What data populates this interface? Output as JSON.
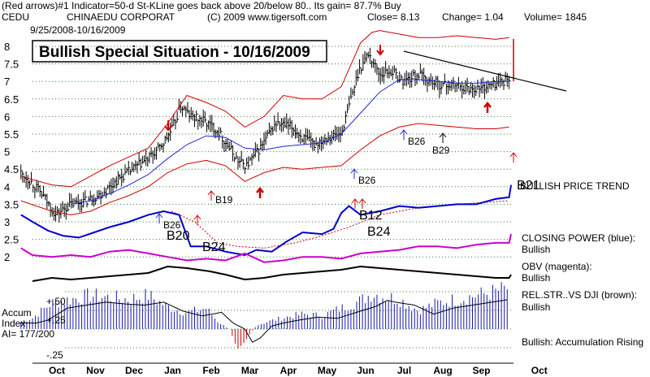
{
  "header": {
    "line1": "(Red arrows)#1 Indicator=50-d St-KLine goes back above 20/below 80..  Its gain= 87.7% Buy",
    "ticker": "CEDU",
    "company": "CHINAEDU CORPORAT",
    "copyright": "(C) 2009 www.tigersoft.com",
    "close_text": "Close=  8.13",
    "change_text": "Change= 1.04",
    "volume_text": "Volume= 1845",
    "date_range": "9/25/2008-10/16/2009"
  },
  "banner": "Bullish Special Situation - 10/16/2009",
  "labels": {
    "accum_index": [
      "Accum",
      "Index",
      "AI= 177/200"
    ],
    "bullish_trend": "BULLISH PRICE TREND",
    "closing_power": [
      "CLOSING POWER (blue):",
      "Bullish"
    ],
    "obv": [
      "OBV (magenta):",
      "Bullish"
    ],
    "relstr": [
      "REL.STR..VS DJI (brown):",
      "Bullish"
    ],
    "accum_rising": "Bullish: Accumulation Rising",
    "b21_overlap": "B21"
  },
  "signals": [
    {
      "text": "B19"
    },
    {
      "text": "B26"
    },
    {
      "text": "B26"
    },
    {
      "text": "B29"
    },
    {
      "text": "B26"
    },
    {
      "text": "B20"
    },
    {
      "text": "B24"
    },
    {
      "text": "B12"
    },
    {
      "text": "B24"
    }
  ],
  "chart_data": {
    "type": "line",
    "price_axis": {
      "ticks": [
        "8",
        "7.5",
        "7",
        "6.5",
        "6",
        "5.5",
        "5",
        "4.5",
        "4",
        "3.5",
        "3",
        "2.5",
        "2"
      ],
      "ylim": [
        1.9,
        8.5
      ]
    },
    "indicator_ticks": [
      "+.50",
      "+.25",
      "-.25"
    ],
    "x_tick_labels": [
      "Oct",
      "Nov",
      "Dec",
      "Jan",
      "Feb",
      "Mar",
      "Apr",
      "May",
      "Jun",
      "Jul",
      "Aug",
      "Sep",
      "Oct"
    ],
    "x_tick_months": [
      0,
      1,
      2,
      3,
      4,
      5,
      6,
      7,
      8,
      9,
      10,
      11,
      12.5
    ],
    "grid": true,
    "series": [
      {
        "key": "price",
        "color": "#000000",
        "x": [
          -0.3,
          0,
          0.3,
          0.6,
          1,
          1.4,
          1.8,
          2.2,
          2.6,
          3,
          3.3,
          3.6,
          3.85,
          4.1,
          4.4,
          4.8,
          5.1,
          5.35,
          5.55,
          5.9,
          6.3,
          6.7,
          7,
          7.3,
          7.6,
          8,
          8.25,
          8.45,
          8.7,
          9,
          9.3,
          9.6,
          10,
          10.3,
          10.6,
          11,
          11.3,
          11.6,
          11.9,
          12.15,
          12.35
        ],
        "values": [
          4.4,
          4.1,
          3.7,
          3.2,
          3.5,
          3.6,
          3.8,
          4.2,
          4.5,
          4.8,
          5.1,
          5.6,
          6.3,
          6.0,
          5.9,
          5.6,
          5.1,
          4.7,
          4.6,
          5.1,
          5.8,
          5.7,
          5.4,
          5.2,
          5.4,
          5.5,
          6.5,
          7.3,
          7.8,
          7.2,
          7.3,
          7.0,
          7.2,
          7.0,
          6.9,
          6.9,
          6.8,
          6.8,
          6.9,
          7.0,
          7.05
        ]
      },
      {
        "key": "mavg",
        "color": "#2222dd",
        "x": [
          1,
          1.5,
          2,
          2.5,
          3,
          3.5,
          4,
          4.5,
          5,
          5.5,
          6,
          6.5,
          7,
          7.5,
          8,
          8.5,
          9,
          9.5,
          10,
          10.5,
          11,
          11.5,
          12,
          12.35
        ],
        "values": [
          3.5,
          3.6,
          3.8,
          4.05,
          4.35,
          4.8,
          5.2,
          5.45,
          5.4,
          5.1,
          5.05,
          5.15,
          5.2,
          5.25,
          5.5,
          6.1,
          6.7,
          7.05,
          7.05,
          7.0,
          6.95,
          6.95,
          7.0,
          7.0
        ]
      },
      {
        "key": "upper_band",
        "color": "#cc0000",
        "x": [
          -0.3,
          0.5,
          1,
          1.5,
          2,
          2.5,
          3,
          3.5,
          4,
          4.5,
          5,
          5.5,
          6,
          6.5,
          7,
          7.5,
          8,
          8.5,
          8.8,
          9,
          9.5,
          10,
          10.5,
          11,
          11.5,
          12,
          12.35
        ],
        "values": [
          4.3,
          4.05,
          4.0,
          4.3,
          4.6,
          4.85,
          5.1,
          5.8,
          6.6,
          6.4,
          6.15,
          5.7,
          6.0,
          6.6,
          6.5,
          6.5,
          6.85,
          8.1,
          8.4,
          8.45,
          8.35,
          8.25,
          8.25,
          8.3,
          8.25,
          8.2,
          8.25
        ]
      },
      {
        "key": "lower_band",
        "color": "#cc0000",
        "x": [
          -0.3,
          0.5,
          1,
          1.5,
          2,
          2.5,
          3,
          3.5,
          4,
          4.5,
          5,
          5.5,
          6,
          6.5,
          7,
          7.5,
          8,
          8.5,
          9,
          9.5,
          10,
          10.5,
          11,
          11.5,
          12,
          12.35
        ],
        "values": [
          3.6,
          3.3,
          3.2,
          3.3,
          3.55,
          3.75,
          4.0,
          4.4,
          4.65,
          4.75,
          4.6,
          4.15,
          4.4,
          4.55,
          4.5,
          4.55,
          4.6,
          5.05,
          5.45,
          5.7,
          5.8,
          5.75,
          5.7,
          5.65,
          5.65,
          5.7
        ]
      },
      {
        "key": "relstr_line",
        "color": "#cc0000",
        "x": [
          3.6,
          4.2,
          4.8,
          5.3,
          6,
          6.8,
          7.5,
          8.2,
          9,
          10,
          11,
          12.35
        ],
        "values": [
          3.3,
          3.0,
          2.4,
          2.3,
          2.25,
          2.4,
          2.6,
          2.85,
          3.2,
          3.4,
          3.5,
          3.6
        ]
      },
      {
        "key": "closing_power",
        "color": "#0000cc",
        "x": [
          -0.3,
          0,
          0.4,
          0.8,
          1.2,
          1.6,
          2,
          2.5,
          3,
          3.4,
          3.8,
          4.1,
          4.5,
          5,
          5.5,
          5.8,
          6.2,
          6.6,
          7,
          7.5,
          7.8,
          8,
          8.2,
          8.5,
          9,
          9.5,
          10,
          10.5,
          11,
          11.5,
          12,
          12.35,
          12.4
        ],
        "values": [
          3.2,
          3.0,
          2.75,
          2.6,
          2.55,
          2.7,
          2.85,
          3.0,
          3.2,
          3.3,
          3.2,
          2.3,
          2.3,
          2.15,
          2.05,
          2.2,
          2.15,
          2.45,
          2.7,
          2.65,
          2.8,
          3.25,
          3.45,
          3.2,
          3.3,
          3.45,
          3.4,
          3.45,
          3.5,
          3.5,
          3.65,
          3.7,
          4.05
        ]
      },
      {
        "key": "obv",
        "color": "#cc00cc",
        "x": [
          -0.3,
          0,
          0.5,
          1,
          1.5,
          2,
          2.5,
          3,
          3.5,
          4,
          4.5,
          5,
          5.5,
          6,
          6.5,
          7,
          7.5,
          8,
          8.5,
          9,
          9.5,
          10,
          10.5,
          11,
          11.5,
          12,
          12.35,
          12.4
        ],
        "values": [
          2.25,
          2.05,
          2.0,
          2.05,
          2.0,
          2.15,
          2.2,
          2.1,
          2.0,
          1.9,
          1.95,
          1.9,
          2.1,
          1.85,
          1.9,
          2.0,
          2.0,
          1.95,
          2.1,
          2.15,
          2.2,
          2.3,
          2.3,
          2.25,
          2.35,
          2.4,
          2.4,
          2.65
        ]
      },
      {
        "key": "relstr_brown",
        "color": "#000000",
        "x": [
          0,
          0.5,
          1,
          1.5,
          2,
          2.5,
          3,
          3.5,
          4,
          4.3,
          4.6,
          5,
          5.5,
          6,
          6.5,
          7,
          7.5,
          8,
          8.5,
          9,
          9.5,
          10,
          10.5,
          11,
          11.5,
          12,
          12.35,
          12.4
        ],
        "values": [
          1.25,
          1.35,
          1.3,
          1.35,
          1.4,
          1.45,
          1.5,
          1.7,
          1.65,
          1.6,
          1.55,
          1.45,
          1.3,
          1.35,
          1.45,
          1.5,
          1.55,
          1.6,
          1.7,
          1.65,
          1.6,
          1.55,
          1.5,
          1.45,
          1.4,
          1.35,
          1.35,
          1.45
        ]
      }
    ],
    "accumulation_index": {
      "x": [
        -0.3,
        0,
        0.5,
        1,
        1.5,
        2,
        2.5,
        3,
        3.5,
        4,
        4.5,
        4.8,
        5.1,
        5.3,
        5.5,
        5.8,
        6.1,
        6.5,
        7,
        7.5,
        8,
        8.5,
        8.8,
        9,
        9.5,
        10,
        10.5,
        11,
        11.5,
        12,
        12.35
      ],
      "values": [
        0.1,
        0.15,
        0.35,
        0.4,
        0.45,
        0.42,
        0.4,
        0.45,
        0.3,
        0.22,
        0.28,
        0.1,
        0.0,
        -0.22,
        -0.15,
        0.05,
        0.1,
        0.15,
        0.2,
        0.18,
        0.28,
        0.38,
        0.48,
        0.45,
        0.4,
        0.25,
        0.35,
        0.4,
        0.45,
        0.5,
        0.55
      ]
    }
  }
}
